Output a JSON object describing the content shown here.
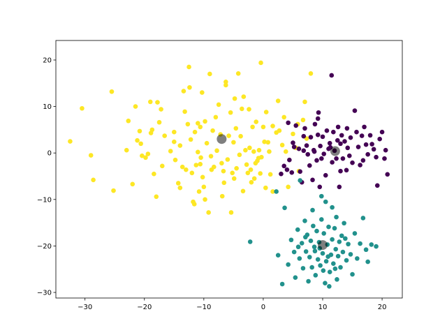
{
  "chart_data": {
    "type": "scatter",
    "title": "",
    "xlabel": "",
    "ylabel": "",
    "xlim": [
      -34.9,
      23.4
    ],
    "ylim": [
      -31.2,
      24.2
    ],
    "grid": false,
    "x_ticks": [
      -30,
      -20,
      -10,
      0,
      10,
      20
    ],
    "y_ticks": [
      -30,
      -20,
      -10,
      0,
      10,
      20
    ],
    "x_tick_labels": [
      "−30",
      "−20",
      "−10",
      "0",
      "10",
      "20"
    ],
    "y_tick_labels": [
      "−30",
      "−20",
      "−10",
      "0",
      "10",
      "20"
    ],
    "series": [
      {
        "color": "#fde725",
        "points": [
          [
            -32.5,
            2.5
          ],
          [
            -30.5,
            9.6
          ],
          [
            -29,
            -0.5
          ],
          [
            -28.6,
            -5.8
          ],
          [
            -25.5,
            13.2
          ],
          [
            -25.2,
            -8.1
          ],
          [
            -23,
            0.6
          ],
          [
            -22.7,
            6.9
          ],
          [
            -22,
            -6.7
          ],
          [
            -21.5,
            10
          ],
          [
            -21.2,
            2.7
          ],
          [
            -20.8,
            4.7
          ],
          [
            -20.6,
            2
          ],
          [
            -19.8,
            -1
          ],
          [
            -19.4,
            -0.2
          ],
          [
            -19,
            11
          ],
          [
            -18.7,
            5
          ],
          [
            -18.4,
            -4.5
          ],
          [
            -18,
            -9.4
          ],
          [
            -17.8,
            10.9
          ],
          [
            -17.5,
            6.6
          ],
          [
            -17.2,
            9.4
          ],
          [
            -17,
            -2.8
          ],
          [
            -16.6,
            3.7
          ],
          [
            -15.6,
            0.4
          ],
          [
            -15,
            2.4
          ],
          [
            -15,
            4.5
          ],
          [
            -14.8,
            -1.5
          ],
          [
            -14,
            -7.5
          ],
          [
            -14,
            1.6
          ],
          [
            -13.6,
            -3
          ],
          [
            -13.4,
            13.3
          ],
          [
            -13,
            -3.6
          ],
          [
            -12.7,
            6.2
          ],
          [
            -12.5,
            18.5
          ],
          [
            -12.4,
            14.1
          ],
          [
            -12.2,
            2.9
          ],
          [
            -12,
            -4.3
          ],
          [
            -11.8,
            -10.5
          ],
          [
            -11.6,
            -11
          ],
          [
            -11.5,
            4.5
          ],
          [
            -11.3,
            -2.6
          ],
          [
            -11,
            0.2
          ],
          [
            -11,
            6.4
          ],
          [
            -10.8,
            -8.3
          ],
          [
            -10.6,
            5.6
          ],
          [
            -10.5,
            -1
          ],
          [
            -10.3,
            13
          ],
          [
            -10.2,
            -5.2
          ],
          [
            -10,
            -7.3
          ],
          [
            -9.8,
            6.8
          ],
          [
            -9.8,
            -10
          ],
          [
            -9.5,
            2.1
          ],
          [
            -9.2,
            -12.8
          ],
          [
            -9,
            17
          ],
          [
            -8.8,
            -0.7
          ],
          [
            -8.7,
            -3.6
          ],
          [
            -8.3,
            -3
          ],
          [
            -8,
            7.7
          ],
          [
            -7.8,
            0.5
          ],
          [
            -7.5,
            10.4
          ],
          [
            -7.2,
            4
          ],
          [
            -7,
            -2.2
          ],
          [
            -6.9,
            -9.3
          ],
          [
            -6.7,
            -3.9
          ],
          [
            -6.6,
            -6.4
          ],
          [
            -6.3,
            14.6
          ],
          [
            -6.3,
            15.3
          ],
          [
            -6,
            -1.4
          ],
          [
            -5.8,
            3.7
          ],
          [
            -5.5,
            8.7
          ],
          [
            -5.4,
            -12.8
          ],
          [
            -5.2,
            -4.3
          ],
          [
            -5,
            2.3
          ],
          [
            -4.8,
            11.7
          ],
          [
            -4.6,
            5.3
          ],
          [
            -4.5,
            -3.3
          ],
          [
            -4.2,
            17.1
          ],
          [
            -4,
            -0.4
          ],
          [
            -3.8,
            3.6
          ],
          [
            -3.6,
            9.5
          ],
          [
            -3.4,
            -8.2
          ],
          [
            -3.3,
            12.1
          ],
          [
            -3,
            0.6
          ],
          [
            -2.8,
            -2.5
          ],
          [
            -2.6,
            -4.3
          ],
          [
            -2.4,
            9.4
          ],
          [
            -2.3,
            1.1
          ],
          [
            -2.1,
            -3.6
          ],
          [
            -2,
            -6.3
          ],
          [
            -1.8,
            5.6
          ],
          [
            -1.6,
            0.3
          ],
          [
            -1.3,
            -2.2
          ],
          [
            -1.2,
            6.7
          ],
          [
            -1,
            -1.7
          ],
          [
            -0.8,
            -1.1
          ],
          [
            -0.7,
            0.6
          ],
          [
            -0.5,
            -4.4
          ],
          [
            -0.4,
            19.4
          ],
          [
            -0.3,
            -0.9
          ],
          [
            0,
            5.6
          ],
          [
            0.2,
            2.4
          ],
          [
            0.4,
            -7.5
          ],
          [
            0.5,
            8.8
          ],
          [
            0.8,
            2.3
          ],
          [
            1,
            0.3
          ],
          [
            1.2,
            -4.6
          ],
          [
            1.6,
            -8.3
          ],
          [
            2.2,
            4.4
          ],
          [
            2.5,
            11.2
          ],
          [
            2.7,
            4.8
          ],
          [
            3.2,
            1.7
          ],
          [
            3.5,
            7.7
          ],
          [
            3.8,
            0.3
          ],
          [
            4.2,
            -7.3
          ],
          [
            5,
            4.1
          ],
          [
            5.5,
            1.1
          ],
          [
            6,
            -3.9
          ],
          [
            7,
            11
          ],
          [
            8,
            17.1
          ],
          [
            7.3,
            3.1
          ],
          [
            6.7,
            7.1
          ],
          [
            5.8,
            6.2
          ],
          [
            -14.3,
            -6.5
          ],
          [
            -18.9,
            4.3
          ],
          [
            -20.4,
            -0.6
          ],
          [
            -13.2,
            8.9
          ],
          [
            -8.5,
            4.8
          ],
          [
            -10.6,
            -2.4
          ],
          [
            -1.5,
            -5.5
          ],
          [
            1.6,
            5.8
          ],
          [
            -4.9,
            -5.5
          ]
        ]
      },
      {
        "color": "#440154",
        "points": [
          [
            3,
            -4.5
          ],
          [
            3.5,
            -2.8
          ],
          [
            4,
            -3.6
          ],
          [
            4.2,
            6.5
          ],
          [
            4.4,
            -1.5
          ],
          [
            4.8,
            -4.2
          ],
          [
            5,
            2.2
          ],
          [
            5.2,
            1.3
          ],
          [
            5.5,
            5.9
          ],
          [
            6,
            0.9
          ],
          [
            6.2,
            -4
          ],
          [
            6.5,
            -6.3
          ],
          [
            6.8,
            3.6
          ],
          [
            7,
            5.3
          ],
          [
            7.3,
            1.6
          ],
          [
            7.5,
            -0.3
          ],
          [
            7.8,
            -2.7
          ],
          [
            8,
            3.4
          ],
          [
            8.3,
            -5.8
          ],
          [
            8.5,
            0.6
          ],
          [
            8.7,
            6.2
          ],
          [
            9,
            -1.6
          ],
          [
            9.2,
            3.9
          ],
          [
            9.3,
            8.7
          ],
          [
            9.5,
            -7.3
          ],
          [
            9.6,
            1.5
          ],
          [
            9.8,
            -1.2
          ],
          [
            10,
            3.5
          ],
          [
            10.2,
            -0.2
          ],
          [
            10.5,
            -4.8
          ],
          [
            10.7,
            4.8
          ],
          [
            11,
            0.9
          ],
          [
            11.2,
            2.1
          ],
          [
            11.5,
            16.7
          ],
          [
            11.6,
            -2
          ],
          [
            11.8,
            4.5
          ],
          [
            12,
            0.5
          ],
          [
            12.3,
            -1.2
          ],
          [
            12.5,
            2.7
          ],
          [
            12.6,
            5.6
          ],
          [
            12.8,
            -7.3
          ],
          [
            13,
            -3.9
          ],
          [
            13.2,
            3.8
          ],
          [
            13.4,
            -1.2
          ],
          [
            13.7,
            2.5
          ],
          [
            14,
            -3.7
          ],
          [
            14.2,
            1.1
          ],
          [
            14.5,
            -0.6
          ],
          [
            14.7,
            3.3
          ],
          [
            15,
            -2.1
          ],
          [
            15.4,
            9.1
          ],
          [
            15.7,
            4.5
          ],
          [
            16,
            1.3
          ],
          [
            16.3,
            -2.6
          ],
          [
            16.6,
            3.7
          ],
          [
            17,
            5.6
          ],
          [
            17.3,
            1.8
          ],
          [
            17.6,
            -0.3
          ],
          [
            18,
            3.8
          ],
          [
            18.6,
            0.8
          ],
          [
            19,
            -0.9
          ],
          [
            19.2,
            -7
          ],
          [
            19.6,
            3
          ],
          [
            20,
            4.5
          ],
          [
            20.4,
            -1.2
          ],
          [
            20.6,
            0.6
          ],
          [
            20.9,
            -4.6
          ],
          [
            9.2,
            7.4
          ],
          [
            13,
            2
          ],
          [
            8.6,
            0.3
          ],
          [
            11.3,
            1.2
          ],
          [
            6.8,
            0.5
          ],
          [
            14.1,
            5.3
          ],
          [
            16.8,
            -1.6
          ],
          [
            18.3,
            1.9
          ]
        ]
      },
      {
        "color": "#21918c",
        "points": [
          [
            -2.2,
            -19.1
          ],
          [
            2.2,
            -8.3
          ],
          [
            2.5,
            -22
          ],
          [
            3.2,
            -28.2
          ],
          [
            3.6,
            -11.8
          ],
          [
            4.2,
            -24
          ],
          [
            4.7,
            -18.7
          ],
          [
            5.2,
            -21.3
          ],
          [
            5.4,
            -26.8
          ],
          [
            5.8,
            -16.5
          ],
          [
            6.1,
            -22.7
          ],
          [
            6.5,
            -19.4
          ],
          [
            6.7,
            -24.8
          ],
          [
            7,
            -14.6
          ],
          [
            7.2,
            -21.2
          ],
          [
            7.4,
            -17.6
          ],
          [
            7.6,
            -27.6
          ],
          [
            7.8,
            -22.4
          ],
          [
            8,
            -18.9
          ],
          [
            8.2,
            -24.6
          ],
          [
            8.4,
            -15.7
          ],
          [
            8.6,
            -20.2
          ],
          [
            8.8,
            -26.3
          ],
          [
            9,
            -16.8
          ],
          [
            9.2,
            -22.9
          ],
          [
            9.4,
            -19.2
          ],
          [
            9.6,
            -24.2
          ],
          [
            9.8,
            -14.3
          ],
          [
            10,
            -21.6
          ],
          [
            10.2,
            -17.3
          ],
          [
            10.4,
            -28
          ],
          [
            10.6,
            -23.3
          ],
          [
            10.8,
            -19.7
          ],
          [
            11,
            -15.9
          ],
          [
            11.2,
            -25.6
          ],
          [
            11.4,
            -21.9
          ],
          [
            11.6,
            -18.6
          ],
          [
            11.8,
            -23.8
          ],
          [
            12,
            -16.2
          ],
          [
            12.2,
            -20.7
          ],
          [
            12.4,
            -27.2
          ],
          [
            12.6,
            -22.2
          ],
          [
            12.8,
            -19.1
          ],
          [
            13,
            -24.6
          ],
          [
            13.2,
            -17.8
          ],
          [
            13.4,
            -21.3
          ],
          [
            13.6,
            -15.1
          ],
          [
            14,
            -23.1
          ],
          [
            14.3,
            -19.6
          ],
          [
            14.7,
            -21.8
          ],
          [
            15,
            -26.1
          ],
          [
            15.4,
            -17.3
          ],
          [
            15.8,
            -22.7
          ],
          [
            16.3,
            -19.5
          ],
          [
            16.8,
            -14
          ],
          [
            17.3,
            -20.8
          ],
          [
            17.6,
            -23.4
          ],
          [
            18.2,
            -19.7
          ],
          [
            19,
            -20.1
          ],
          [
            11.6,
            -11.7
          ],
          [
            12.3,
            -13.8
          ],
          [
            10.5,
            -10.5
          ],
          [
            9.8,
            -9.3
          ],
          [
            8.3,
            -12.3
          ],
          [
            6.2,
            -5.9
          ],
          [
            7.1,
            -18.1
          ],
          [
            9.5,
            -20.5
          ],
          [
            10.9,
            -22.3
          ],
          [
            12.1,
            -24.9
          ],
          [
            8.7,
            -21.1
          ],
          [
            5.9,
            -20.2
          ],
          [
            13.8,
            -18.4
          ],
          [
            11.1,
            -28.7
          ],
          [
            10.1,
            -25.3
          ]
        ]
      }
    ],
    "centroids": {
      "color": "#000000",
      "points": [
        [
          -7,
          3
        ],
        [
          12.1,
          0.4
        ],
        [
          10,
          -19.8
        ]
      ]
    }
  }
}
